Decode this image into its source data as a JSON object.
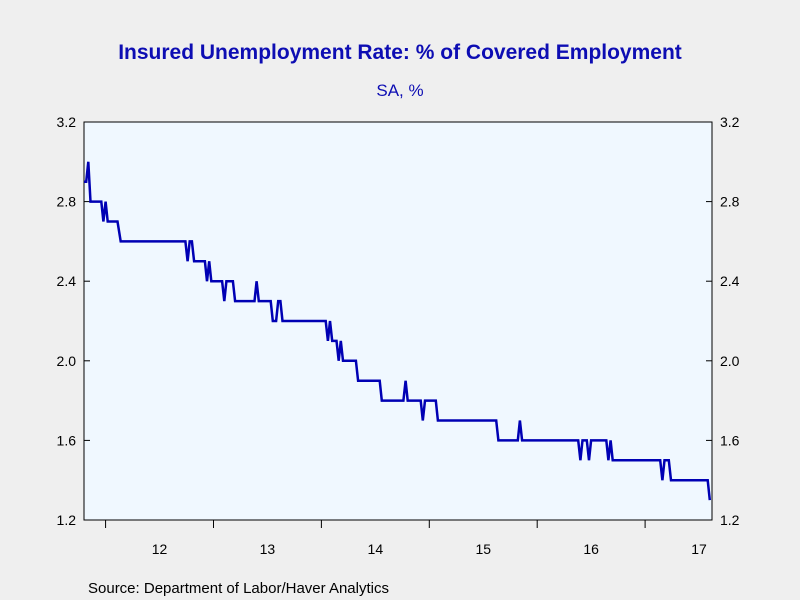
{
  "chart_data": {
    "type": "line",
    "title": "Insured Unemployment Rate: % of Covered Employment",
    "subtitle": "SA, %",
    "source": "Source:  Department of Labor/Haver Analytics",
    "xlabel": "",
    "ylabel": "",
    "xlim": [
      2011.8,
      2017.62
    ],
    "ylim": [
      1.2,
      3.2
    ],
    "y_ticks": [
      1.2,
      1.6,
      2.0,
      2.4,
      2.8,
      3.2
    ],
    "y_tick_labels": [
      "1.2",
      "1.6",
      "2.0",
      "2.4",
      "2.8",
      "3.2"
    ],
    "x_tick_positions": [
      2012.5,
      2013.5,
      2014.5,
      2015.5,
      2016.5,
      2017.5
    ],
    "x_tick_labels": [
      "12",
      "13",
      "14",
      "15",
      "16",
      "17"
    ],
    "x_minor_ticks": [
      2012,
      2013,
      2014,
      2015,
      2016,
      2017
    ],
    "grid": false,
    "colors": {
      "line": "#0000b4",
      "title": "#0d0db3",
      "plot_bg": "#f0f8ff",
      "page_bg": "#efefef"
    },
    "series": [
      {
        "values": [
          [
            2011.8,
            2.9
          ],
          [
            2011.82,
            2.9
          ],
          [
            2011.84,
            3.0
          ],
          [
            2011.86,
            2.8
          ],
          [
            2011.96,
            2.8
          ],
          [
            2011.98,
            2.7
          ],
          [
            2012.0,
            2.8
          ],
          [
            2012.02,
            2.7
          ],
          [
            2012.05,
            2.7
          ],
          [
            2012.11,
            2.7
          ],
          [
            2012.14,
            2.6
          ],
          [
            2012.74,
            2.6
          ],
          [
            2012.76,
            2.5
          ],
          [
            2012.78,
            2.6
          ],
          [
            2012.8,
            2.6
          ],
          [
            2012.82,
            2.5
          ],
          [
            2012.92,
            2.5
          ],
          [
            2012.94,
            2.4
          ],
          [
            2012.96,
            2.5
          ],
          [
            2012.98,
            2.4
          ],
          [
            2013.08,
            2.4
          ],
          [
            2013.1,
            2.3
          ],
          [
            2013.12,
            2.4
          ],
          [
            2013.18,
            2.4
          ],
          [
            2013.2,
            2.3
          ],
          [
            2013.38,
            2.3
          ],
          [
            2013.4,
            2.4
          ],
          [
            2013.42,
            2.3
          ],
          [
            2013.53,
            2.3
          ],
          [
            2013.55,
            2.2
          ],
          [
            2013.58,
            2.2
          ],
          [
            2013.6,
            2.3
          ],
          [
            2013.62,
            2.3
          ],
          [
            2013.64,
            2.2
          ],
          [
            2014.04,
            2.2
          ],
          [
            2014.06,
            2.1
          ],
          [
            2014.08,
            2.2
          ],
          [
            2014.1,
            2.1
          ],
          [
            2014.14,
            2.1
          ],
          [
            2014.16,
            2.0
          ],
          [
            2014.18,
            2.1
          ],
          [
            2014.2,
            2.0
          ],
          [
            2014.32,
            2.0
          ],
          [
            2014.34,
            1.9
          ],
          [
            2014.54,
            1.9
          ],
          [
            2014.56,
            1.8
          ],
          [
            2014.76,
            1.8
          ],
          [
            2014.78,
            1.9
          ],
          [
            2014.8,
            1.8
          ],
          [
            2014.92,
            1.8
          ],
          [
            2014.94,
            1.7
          ],
          [
            2014.96,
            1.8
          ],
          [
            2015.06,
            1.8
          ],
          [
            2015.08,
            1.7
          ],
          [
            2015.62,
            1.7
          ],
          [
            2015.64,
            1.6
          ],
          [
            2015.82,
            1.6
          ],
          [
            2015.84,
            1.7
          ],
          [
            2015.86,
            1.6
          ],
          [
            2016.38,
            1.6
          ],
          [
            2016.4,
            1.5
          ],
          [
            2016.42,
            1.6
          ],
          [
            2016.46,
            1.6
          ],
          [
            2016.48,
            1.5
          ],
          [
            2016.5,
            1.6
          ],
          [
            2016.64,
            1.6
          ],
          [
            2016.66,
            1.5
          ],
          [
            2016.68,
            1.6
          ],
          [
            2016.7,
            1.5
          ],
          [
            2017.14,
            1.5
          ],
          [
            2017.16,
            1.4
          ],
          [
            2017.18,
            1.5
          ],
          [
            2017.22,
            1.5
          ],
          [
            2017.24,
            1.4
          ],
          [
            2017.58,
            1.4
          ],
          [
            2017.6,
            1.3
          ]
        ]
      }
    ]
  }
}
